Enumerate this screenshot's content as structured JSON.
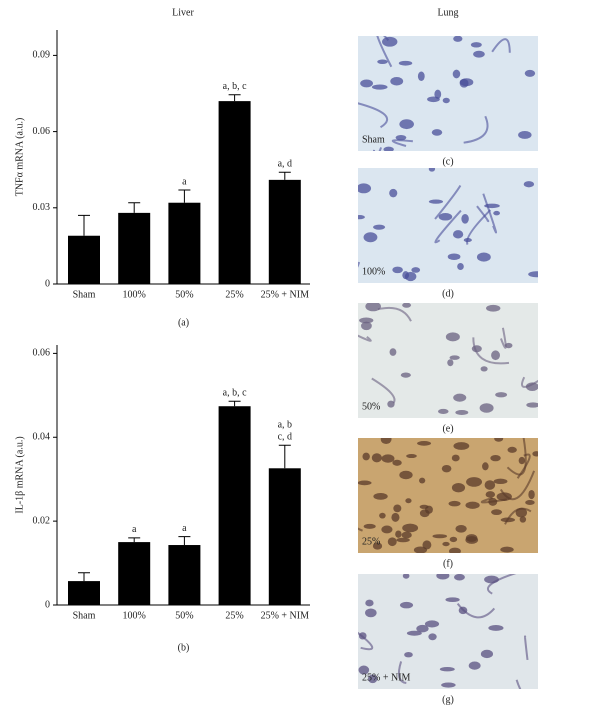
{
  "chart_data": [
    {
      "type": "bar",
      "title": "Liver",
      "caption": "(a)",
      "ylabel": "TNFα mRNA (a.u.)",
      "categories": [
        "Sham",
        "100%",
        "50%",
        "25%",
        "25% + NIM"
      ],
      "values": [
        0.019,
        0.028,
        0.032,
        0.072,
        0.041
      ],
      "errors": [
        0.008,
        0.004,
        0.005,
        0.0025,
        0.003
      ],
      "annotations": [
        null,
        null,
        [
          "a"
        ],
        [
          "a, b, c"
        ],
        [
          "a, d"
        ]
      ],
      "color": "#000000",
      "ylim": [
        0,
        0.1
      ],
      "yticks": [
        0,
        0.03,
        0.06,
        0.09
      ]
    },
    {
      "type": "bar",
      "caption": "(b)",
      "ylabel": "IL-1β mRNA (a.u.)",
      "categories": [
        "Sham",
        "100%",
        "50%",
        "25%",
        "25% + NIM"
      ],
      "values": [
        0.0057,
        0.015,
        0.0143,
        0.0474,
        0.0326
      ],
      "errors": [
        0.002,
        0.001,
        0.002,
        0.0012,
        0.0055
      ],
      "annotations": [
        null,
        [
          "a"
        ],
        [
          "a"
        ],
        [
          "a, b, c"
        ],
        [
          "a, b",
          "c, d"
        ]
      ],
      "color": "#000000",
      "ylim": [
        0,
        0.062
      ],
      "yticks": [
        0,
        0.02,
        0.04,
        0.06
      ]
    }
  ],
  "lung": {
    "title": "Lung",
    "panels": [
      {
        "label": "Sham",
        "caption": "(c)"
      },
      {
        "label": "100%",
        "caption": "(d)"
      },
      {
        "label": "50%",
        "caption": "(e)"
      },
      {
        "label": "25%",
        "caption": "(f)"
      },
      {
        "label": "25% + NIM",
        "caption": "(g)"
      }
    ]
  }
}
